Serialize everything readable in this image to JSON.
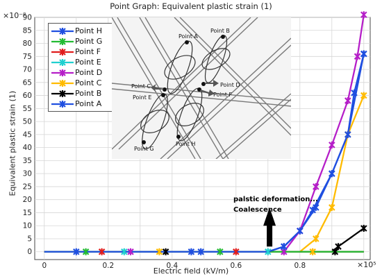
{
  "chart_data": {
    "type": "line",
    "title": "Point Graph: Equivalent plastic strain (1)",
    "xlabel": "Electric field (kV/m)",
    "ylabel": "Equivalent plastic strain (1)",
    "x_multiplier": "×10⁵",
    "y_multiplier": "×10⁻⁸",
    "xlim": [
      -0.03,
      1.02
    ],
    "ylim": [
      -3,
      90
    ],
    "x_ticks": [
      0,
      0.1,
      0.2,
      0.3,
      0.4,
      0.5,
      0.6,
      0.7,
      0.8,
      0.9,
      1
    ],
    "x_tick_labels": [
      "0",
      "0.2",
      "0.4",
      "0.6",
      "0.8",
      "×10⁵"
    ],
    "y_ticks": [
      0,
      5,
      10,
      15,
      20,
      25,
      30,
      35,
      40,
      45,
      50,
      55,
      60,
      65,
      70,
      75,
      80,
      85,
      90
    ],
    "y_tick_labels": [
      "0",
      "5",
      "10",
      "15",
      "20",
      "25",
      "30",
      "35",
      "40",
      "45",
      "50",
      "55",
      "60",
      "65",
      "70",
      "75",
      "80",
      "85",
      "90"
    ],
    "grid": true,
    "legend_position": "top-left",
    "series": [
      {
        "name": "Point H",
        "color": "#1f4fe0",
        "points": [
          [
            0,
            0
          ],
          [
            0.7,
            0
          ],
          [
            0.75,
            2
          ],
          [
            0.8,
            8
          ],
          [
            0.85,
            17
          ],
          [
            0.9,
            30
          ],
          [
            0.95,
            45
          ],
          [
            1.0,
            76
          ]
        ]
      },
      {
        "name": "Point G",
        "color": "#22bb33",
        "points": [
          [
            0,
            0
          ],
          [
            1.0,
            0
          ]
        ]
      },
      {
        "name": "Point F",
        "color": "#e01c1c",
        "points": [
          [
            0,
            0
          ],
          [
            1.0,
            0
          ]
        ]
      },
      {
        "name": "Point E",
        "color": "#20d0d0",
        "points": [
          [
            0,
            0
          ],
          [
            1.0,
            0
          ]
        ]
      },
      {
        "name": "Point D",
        "color": "#b51ec8",
        "points": [
          [
            0,
            0
          ],
          [
            0.75,
            0
          ],
          [
            0.8,
            8
          ],
          [
            0.85,
            25
          ],
          [
            0.9,
            41
          ],
          [
            0.95,
            58
          ],
          [
            0.98,
            75
          ],
          [
            1.0,
            91
          ]
        ]
      },
      {
        "name": "Point C",
        "color": "#ffbb00",
        "points": [
          [
            0,
            0
          ],
          [
            0.8,
            0
          ],
          [
            0.85,
            5
          ],
          [
            0.9,
            17
          ],
          [
            0.95,
            45
          ],
          [
            1.0,
            60
          ]
        ]
      },
      {
        "name": "Point B",
        "color": "#000000",
        "points": [
          [
            0,
            0
          ],
          [
            0.9,
            0
          ],
          [
            0.92,
            2
          ],
          [
            1.0,
            9
          ]
        ]
      },
      {
        "name": "Point A",
        "color": "#1f4fe0",
        "points": [
          [
            0,
            0
          ],
          [
            0.7,
            0
          ],
          [
            0.75,
            2
          ],
          [
            0.8,
            8
          ],
          [
            0.84,
            16
          ],
          [
            0.9,
            30
          ],
          [
            0.95,
            45
          ],
          [
            0.97,
            61
          ],
          [
            1.0,
            76
          ]
        ]
      }
    ],
    "annotations": [
      "palstic deformation...",
      "Coalescence"
    ],
    "inset_labels": [
      "Point A",
      "Point B",
      "Point C",
      "Point D",
      "Point E",
      "Point F",
      "Point G",
      "Point H"
    ]
  }
}
